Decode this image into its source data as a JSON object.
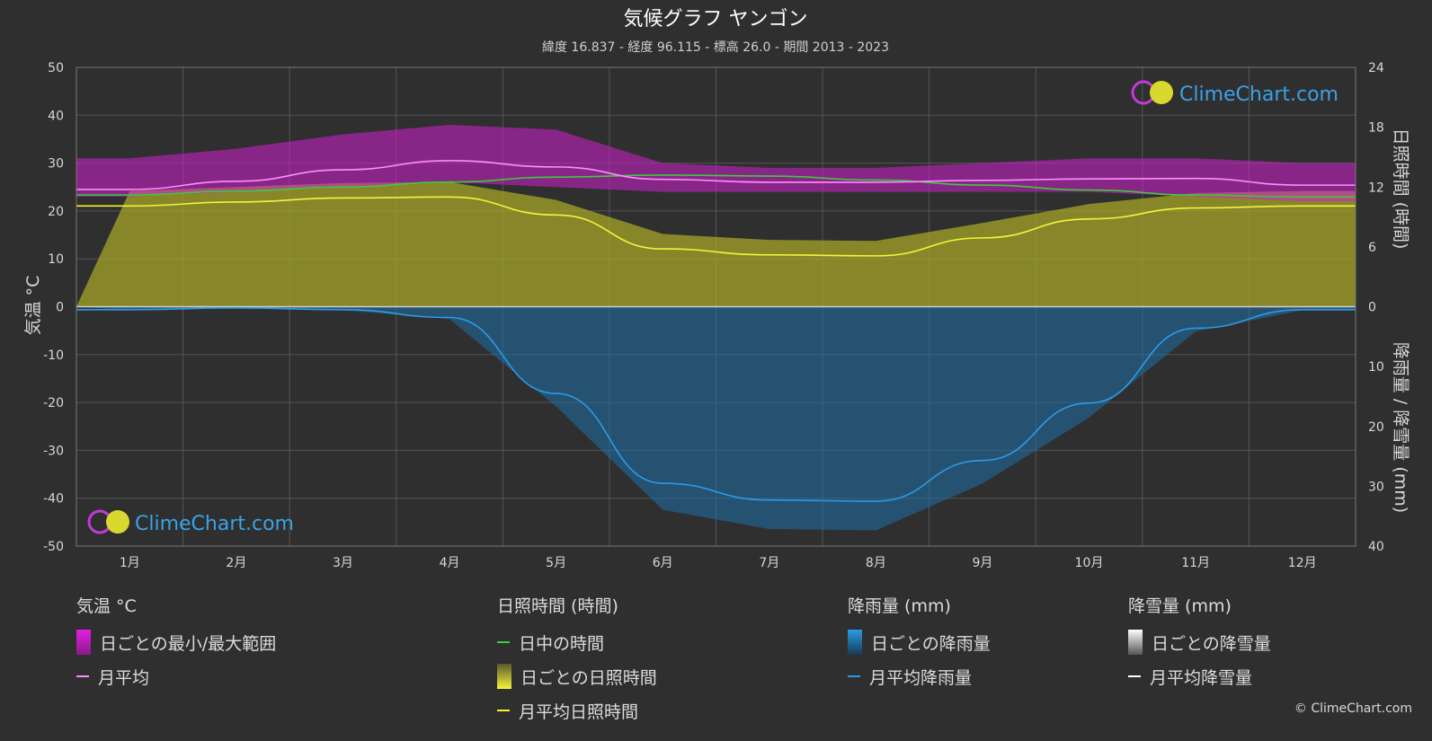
{
  "header": {
    "title": "気候グラフ ヤンゴン",
    "subtitle": "緯度 16.837 - 経度 96.115 - 標高 26.0 - 期間 2013 - 2023"
  },
  "axes": {
    "left_label": "気温 °C",
    "right_top_label": "日照時間 (時間)",
    "right_bottom_label": "降雨量 / 降雪量 (mm)",
    "left_ticks": [
      "50",
      "40",
      "30",
      "20",
      "10",
      "0",
      "-10",
      "-20",
      "-30",
      "-40",
      "-50"
    ],
    "right_top_ticks": [
      "24",
      "18",
      "12",
      "6",
      "0"
    ],
    "right_bottom_ticks": [
      "10",
      "20",
      "30",
      "40"
    ]
  },
  "brand": {
    "logo_text": "ClimeChart.com",
    "copyright": "© ClimeChart.com"
  },
  "legend": {
    "temp": {
      "title": "気温 °C",
      "range": "日ごとの最小/最大範囲",
      "avg": "月平均"
    },
    "sun": {
      "title": "日照時間 (時間)",
      "daylight": "日中の時間",
      "daily": "日ごとの日照時間",
      "avg": "月平均日照時間"
    },
    "rain": {
      "title": "降雨量 (mm)",
      "daily": "日ごとの降雨量",
      "avg": "月平均降雨量"
    },
    "snow": {
      "title": "降雪量 (mm)",
      "daily": "日ごとの降雪量",
      "avg": "月平均降雪量"
    }
  },
  "colors": {
    "temp_range": "#d21fd2",
    "temp_avg": "#ff8cff",
    "daylight": "#3ccc3c",
    "sunshine_fill": "#a5a52a",
    "sunshine_avg": "#f4f43a",
    "rain_fill": "#1f6fa8",
    "rain_avg": "#2a9be8",
    "snow_avg": "#ffffff"
  },
  "chart_data": {
    "type": "line",
    "categories": [
      "1月",
      "2月",
      "3月",
      "4月",
      "5月",
      "6月",
      "7月",
      "8月",
      "9月",
      "10月",
      "11月",
      "12月"
    ],
    "ylim": [
      -50,
      50
    ],
    "y2_sun_lim": [
      0,
      24
    ],
    "y2_rain_lim": [
      0,
      40
    ],
    "series": [
      {
        "name": "日ごとの最小/最大範囲",
        "axis": "temp",
        "min": [
          23,
          24,
          25,
          26,
          25,
          24,
          24,
          24,
          24,
          24,
          23,
          22
        ],
        "max": [
          31,
          33,
          36,
          38,
          37,
          30,
          29,
          29,
          30,
          31,
          31,
          30
        ]
      },
      {
        "name": "月平均",
        "axis": "temp",
        "values": [
          24.5,
          26.2,
          28.6,
          30.5,
          29.2,
          26.6,
          26.0,
          26.0,
          26.4,
          26.7,
          26.8,
          25.4
        ]
      },
      {
        "name": "日中の時間",
        "axis": "sun",
        "values": [
          11.2,
          11.6,
          12.0,
          12.5,
          13.0,
          13.2,
          13.1,
          12.7,
          12.2,
          11.7,
          11.2,
          11.0
        ]
      },
      {
        "name": "月平均日照時間",
        "axis": "sun",
        "values": [
          10.1,
          10.5,
          10.9,
          11.0,
          9.2,
          5.8,
          5.2,
          5.1,
          6.9,
          8.8,
          9.9,
          10.1
        ]
      },
      {
        "name": "月平均降雨量",
        "axis": "rain",
        "values": [
          0.5,
          0.2,
          0.5,
          1.8,
          14.5,
          29.5,
          32.3,
          32.5,
          25.7,
          16.1,
          3.6,
          0.5
        ]
      },
      {
        "name": "月平均降雪量",
        "axis": "rain",
        "values": [
          0,
          0,
          0,
          0,
          0,
          0,
          0,
          0,
          0,
          0,
          0,
          0
        ]
      }
    ]
  }
}
